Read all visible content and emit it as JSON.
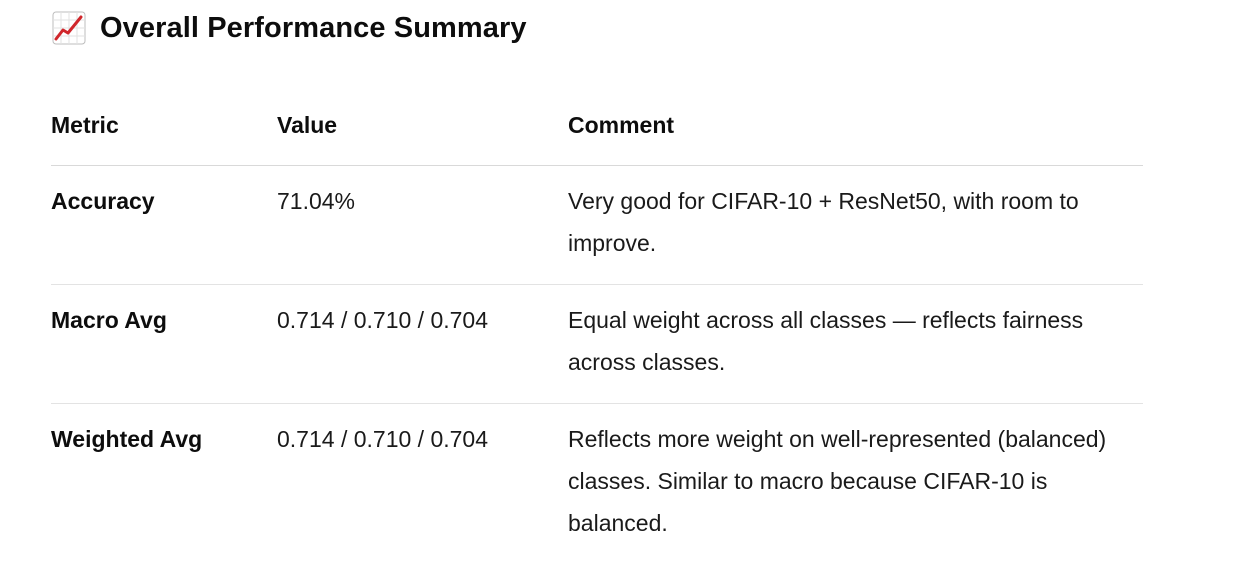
{
  "heading": {
    "icon": "chart-increasing-icon",
    "text": "Overall Performance Summary"
  },
  "table": {
    "columns": [
      "Metric",
      "Value",
      "Comment"
    ],
    "rows": [
      {
        "metric": "Accuracy",
        "value": "71.04%",
        "comment": "Very good for CIFAR-10 + ResNet50, with room to improve."
      },
      {
        "metric": "Macro Avg",
        "value": "0.714 / 0.710 / 0.704",
        "comment": "Equal weight across all classes — reflects fairness across classes."
      },
      {
        "metric": "Weighted Avg",
        "value": "0.714 / 0.710 / 0.704",
        "comment": "Reflects more weight on well-represented (balanced) classes. Similar to macro because CIFAR-10 is balanced."
      }
    ]
  }
}
